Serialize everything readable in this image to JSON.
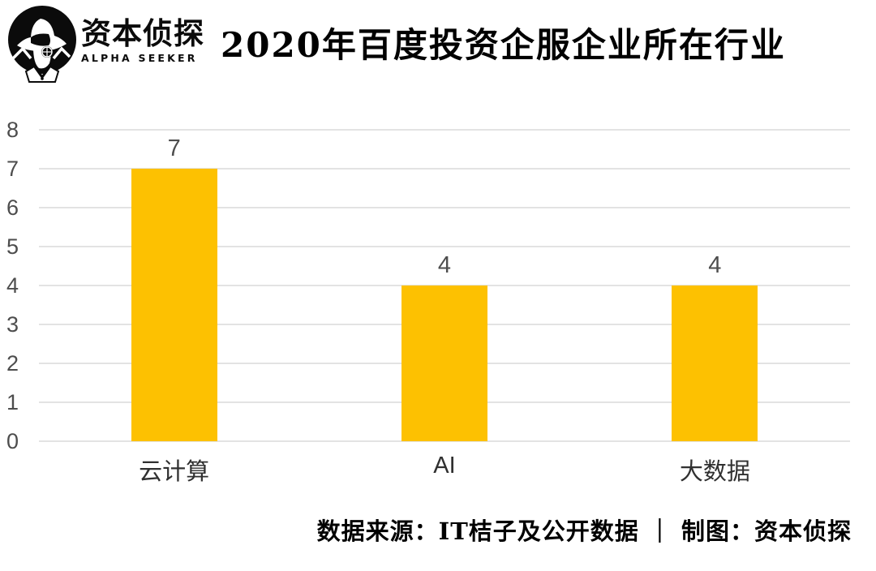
{
  "logo": {
    "name_cn": "资本侦探",
    "name_en": "ALPHA SEEKER"
  },
  "header": {
    "title": "2020年百度投资企服企业所在行业"
  },
  "footer": {
    "text": "数据来源：IT桔子及公开数据 ｜ 制图：资本侦探"
  },
  "colors": {
    "bar": "#FDC101",
    "gridline": "#E3E3E3",
    "tick_label": "#4d4d4d",
    "category_label": "#303030",
    "text": "#000000"
  },
  "chart_data": {
    "type": "bar",
    "title": "2020年百度投资企服企业所在行业",
    "categories": [
      "云计算",
      "AI",
      "大数据"
    ],
    "values": [
      7,
      4,
      4
    ],
    "value_labels": [
      "7",
      "4",
      "4"
    ],
    "xlabel": "",
    "ylabel": "",
    "ylim": [
      0,
      8
    ],
    "yticks": [
      8,
      7,
      6,
      5,
      4,
      3,
      2,
      1,
      0
    ],
    "grid": true,
    "legend": false,
    "bar_color": "#FDC101"
  }
}
